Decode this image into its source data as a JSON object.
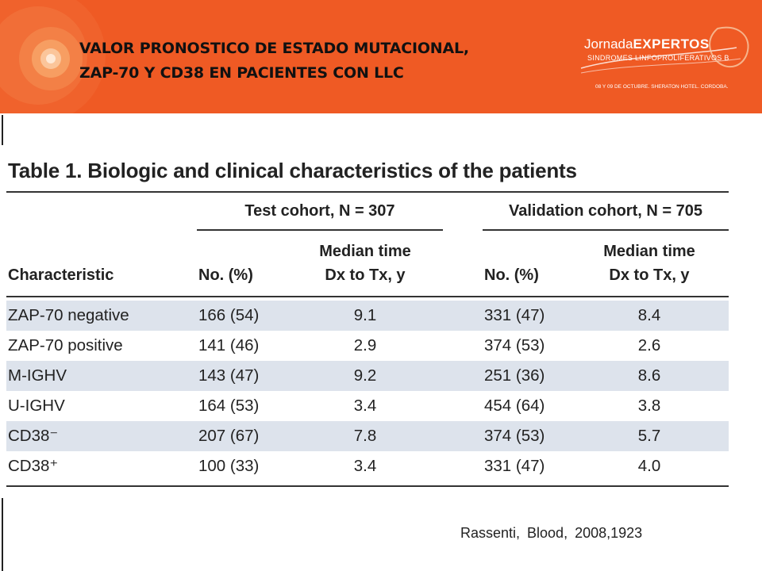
{
  "header": {
    "title_line1": "VALOR PRONOSTICO DE ESTADO MUTACIONAL,",
    "title_line2": "ZAP-70 Y CD38 EN PACIENTES CON LLC",
    "logo": {
      "word1": "Jornada",
      "word2": "EXPERTOS",
      "subtitle": "SINDROMES LINFOPROLIFERATIVOS B",
      "date_line": "08 Y 09 DE OCTUBRE. SHERATON HOTEL. CORDOBA."
    }
  },
  "table": {
    "caption": "Table 1. Biologic and clinical characteristics of the patients",
    "group_test": "Test cohort, N = 307",
    "group_validation": "Validation cohort, N = 705",
    "col_characteristic": "Characteristic",
    "col_no": "No. (%)",
    "col_median_line1": "Median time",
    "col_median_line2": "Dx to Tx, y",
    "rows": [
      {
        "characteristic": "ZAP-70 negative",
        "test_no": "166 (54)",
        "test_median": "9.1",
        "val_no": "331 (47)",
        "val_median": "8.4"
      },
      {
        "characteristic": "ZAP-70 positive",
        "test_no": "141 (46)",
        "test_median": "2.9",
        "val_no": "374 (53)",
        "val_median": "2.6"
      },
      {
        "characteristic": "M-IGHV",
        "test_no": "143 (47)",
        "test_median": "9.2",
        "val_no": "251 (36)",
        "val_median": "8.6"
      },
      {
        "characteristic": "U-IGHV",
        "test_no": "164 (53)",
        "test_median": "3.4",
        "val_no": "454 (64)",
        "val_median": "3.8"
      },
      {
        "characteristic": "CD38⁻",
        "test_no": "207 (67)",
        "test_median": "7.8",
        "val_no": "374 (53)",
        "val_median": "5.7"
      },
      {
        "characteristic": "CD38⁺",
        "test_no": "100 (33)",
        "test_median": "3.4",
        "val_no": "331 (47)",
        "val_median": "4.0"
      }
    ]
  },
  "citation": "Rassenti, Blood, 2008,1923",
  "colors": {
    "banner": "#ef5a24",
    "row_shade": "#dde3ec",
    "text": "#222222"
  }
}
